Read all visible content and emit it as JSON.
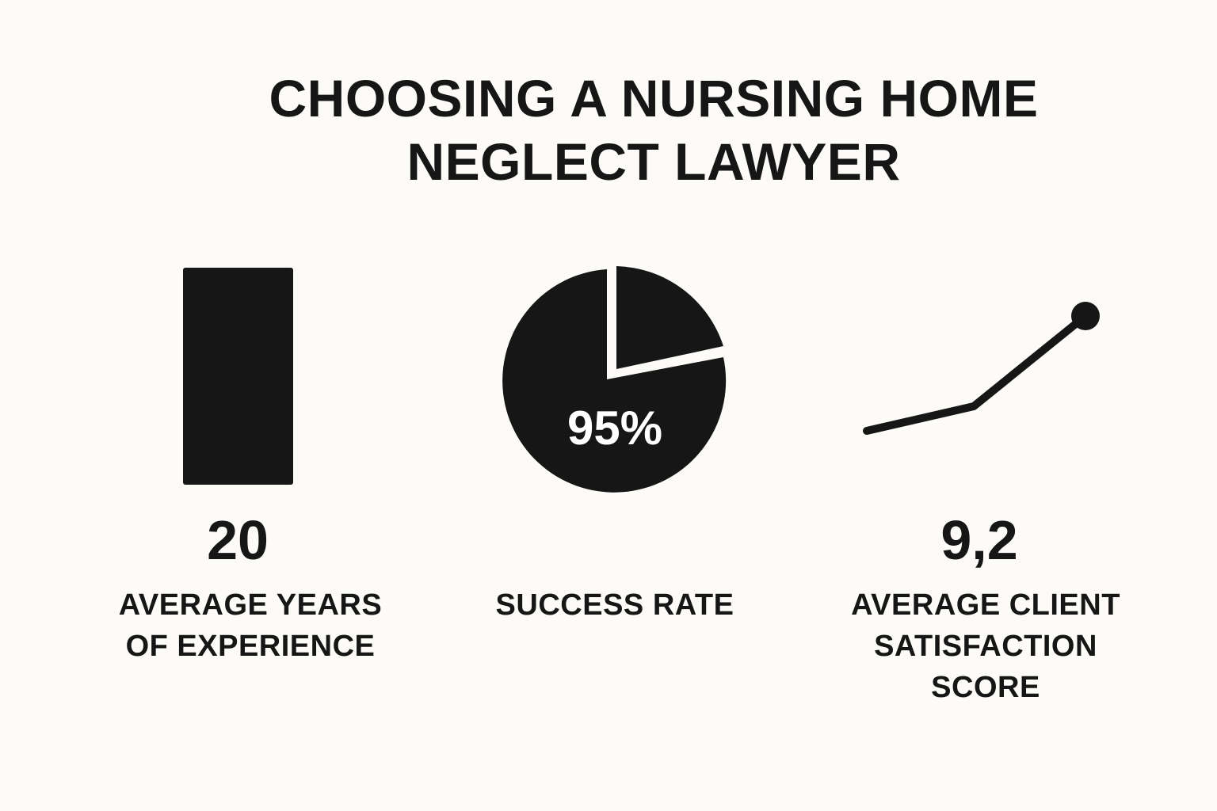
{
  "title": {
    "line1": "CHOOSING A NURSING HOME",
    "line2": "NEGLECT LAWYER"
  },
  "stats": {
    "experience": {
      "value": "20",
      "caption_line1": "AVERAGE YEARS",
      "caption_line2": "OF EXPERIENCE",
      "icon": "bar-icon"
    },
    "success": {
      "value": "95%",
      "caption": "SUCCESS RATE",
      "icon": "pie-icon"
    },
    "satisfaction": {
      "value": "9,2",
      "caption_line1": "AVERAGE CLIENT",
      "caption_line2": "SATISFACTION",
      "caption_line3": "SCORE",
      "icon": "trend-line-icon"
    }
  },
  "colors": {
    "background": "#fcfbf7",
    "foreground": "#161616",
    "pie_label": "#ffffff"
  }
}
